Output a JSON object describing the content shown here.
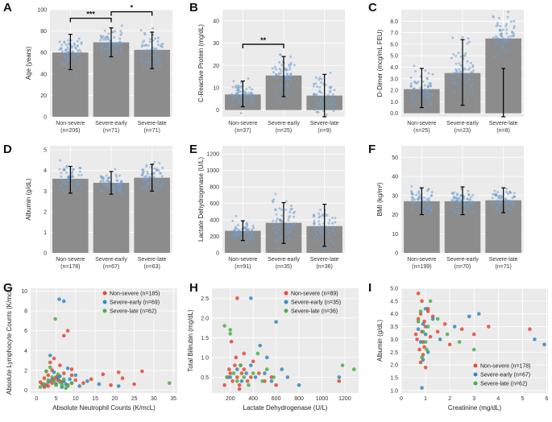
{
  "colors": {
    "bar": "#8c8c8c",
    "bar_dots": "#6f9fd0",
    "non_severe": "#e24a33",
    "severe_early": "#348abd",
    "severe_late": "#4daf4a"
  },
  "chart_data": [
    {
      "id": "A",
      "type": "bar",
      "panel_label": "A",
      "ylabel": "Age (years)",
      "ylim": [
        0,
        100
      ],
      "yticks": [
        0,
        20,
        40,
        60,
        80,
        100
      ],
      "categories": [
        "Non-severe",
        "Severe-early",
        "Severe-late"
      ],
      "ns": [
        "(n=206)",
        "(n=71)",
        "(n=71)"
      ],
      "values": [
        60,
        69.5,
        62.5
      ],
      "err_low": [
        44,
        56,
        45
      ],
      "err_high": [
        77,
        83,
        79
      ],
      "brackets": [
        {
          "from": 0,
          "to": 1,
          "level": 92,
          "label": "***"
        },
        {
          "from": 1,
          "to": 2,
          "level": 98,
          "label": "*"
        }
      ]
    },
    {
      "id": "B",
      "type": "bar",
      "panel_label": "B",
      "ylabel": "C-Reactive Protein (mg/dL)",
      "ylim": [
        -3,
        45
      ],
      "yticks": [
        0,
        10,
        20,
        30,
        40
      ],
      "categories": [
        "Non-severe",
        "Severe-early",
        "Severe-late"
      ],
      "ns": [
        "(n=37)",
        "(n=25)",
        "(n=9)"
      ],
      "values": [
        7,
        15.5,
        6.5
      ],
      "err_low": [
        1.5,
        6,
        -3
      ],
      "err_high": [
        13,
        24,
        16
      ],
      "brackets": [
        {
          "from": 0,
          "to": 1,
          "level": 29.5,
          "label": "**"
        }
      ]
    },
    {
      "id": "C",
      "type": "bar",
      "panel_label": "C",
      "ylabel": "D-Dimer (mcg/mL FEU)",
      "ylim": [
        -0.3,
        9
      ],
      "yticks": [
        0,
        1,
        2,
        3,
        4,
        5,
        6,
        7,
        8
      ],
      "tickDigits": 1,
      "categories": [
        "Non-severe",
        "Severe-early",
        "Severe-late"
      ],
      "ns": [
        "(n=25)",
        "(n=23)",
        "(n=8)"
      ],
      "values": [
        2.1,
        3.5,
        6.5
      ],
      "err_low": [
        0.5,
        0.7,
        -0.3
      ],
      "err_high": [
        3.9,
        6.4,
        3.9
      ],
      "brackets": []
    },
    {
      "id": "D",
      "type": "bar",
      "panel_label": "D",
      "ylabel": "Albumin (g/dL)",
      "ylim": [
        0,
        5.2
      ],
      "yticks": [
        0,
        1,
        2,
        3,
        4,
        5
      ],
      "categories": [
        "Non-severe",
        "Severe-early",
        "Severe-late"
      ],
      "ns": [
        "(n=178)",
        "(n=67)",
        "(n=63)"
      ],
      "values": [
        3.6,
        3.4,
        3.65
      ],
      "err_low": [
        2.9,
        2.85,
        3.0
      ],
      "err_high": [
        4.2,
        3.95,
        4.3
      ],
      "brackets": []
    },
    {
      "id": "E",
      "type": "bar",
      "panel_label": "E",
      "ylabel": "Lactate Dehydrogenase (U/L)",
      "ylim": [
        0,
        1300
      ],
      "yticks": [
        0,
        200,
        400,
        600,
        800,
        1000,
        1200
      ],
      "categories": [
        "Non-severe",
        "Severe-early",
        "Severe-late"
      ],
      "ns": [
        "(n=91)",
        "(n=35)",
        "(n=36)"
      ],
      "values": [
        268,
        365,
        325
      ],
      "err_low": [
        150,
        115,
        80
      ],
      "err_high": [
        390,
        610,
        590
      ],
      "brackets": []
    },
    {
      "id": "F",
      "type": "bar",
      "panel_label": "F",
      "ylabel": "BMI (kg/m²)",
      "ylim": [
        0,
        56
      ],
      "yticks": [
        0,
        10,
        20,
        30,
        40,
        50
      ],
      "categories": [
        "Non-severe",
        "Severe-early",
        "Severe-late"
      ],
      "ns": [
        "(n=199)",
        "(n=70)",
        "(n=71)"
      ],
      "values": [
        27,
        27,
        27.5
      ],
      "err_low": [
        20,
        20,
        21
      ],
      "err_high": [
        34,
        34.5,
        34
      ],
      "brackets": []
    },
    {
      "id": "G",
      "type": "scatter",
      "panel_label": "G",
      "xlabel": "Absolute Neutrophil Counts (K/mcL)",
      "ylabel": "Absolute Lymphocyte Counts (K/mcL)",
      "xlim": [
        -1.5,
        36
      ],
      "ylim": [
        -0.3,
        10.3
      ],
      "xticks": [
        0,
        5,
        10,
        15,
        20,
        25,
        30,
        35
      ],
      "yticks": [
        0,
        2,
        4,
        6,
        8,
        10
      ],
      "series": [
        {
          "name": "Non-severe (n=185)",
          "x": [
            1,
            2,
            2.5,
            3,
            3.5,
            4,
            4.5,
            5,
            5.5,
            6,
            7,
            8,
            9,
            10,
            12,
            14,
            17,
            19,
            21,
            22,
            25,
            27,
            2,
            3,
            4,
            5,
            6,
            7,
            8,
            9,
            3.5,
            4.5,
            5.5,
            6.5,
            1.5,
            2.5
          ],
          "y": [
            0.8,
            1.2,
            0.5,
            1.5,
            0.9,
            2,
            1.1,
            0.6,
            1.4,
            2.5,
            5.5,
            6,
            1.5,
            1,
            0.7,
            1.1,
            1.6,
            0.5,
            1.8,
            1.2,
            0.6,
            1.9,
            0.3,
            0.4,
            0.7,
            1.3,
            0.9,
            1.7,
            0.5,
            2.1,
            2.8,
            3.2,
            1,
            0.8,
            0.6,
            1.9
          ]
        },
        {
          "name": "Severe-early (n=69)",
          "x": [
            2,
            3,
            4,
            5,
            6,
            7,
            8,
            9,
            10,
            11,
            13,
            16,
            21,
            3.5,
            4.5,
            5.5,
            6.5,
            7.5,
            8.5,
            5.8,
            7
          ],
          "y": [
            0.5,
            0.8,
            1.1,
            0.6,
            1.4,
            0.9,
            2.2,
            0.7,
            1.5,
            0.4,
            0.9,
            0.6,
            0.4,
            3.5,
            1.8,
            1.2,
            0.3,
            0.6,
            1.1,
            9.2,
            9
          ]
        },
        {
          "name": "Severe-late (n=62)",
          "x": [
            1,
            2,
            3,
            4,
            5,
            6,
            7,
            8,
            9,
            34,
            2.5,
            3.5,
            4.5,
            5.5,
            6.5,
            7.5,
            4.8
          ],
          "y": [
            0.3,
            0.6,
            1,
            1.3,
            0.5,
            0.8,
            1.1,
            0.4,
            0.7,
            0.7,
            1.9,
            2.3,
            0.9,
            1.6,
            0.5,
            0.2,
            7.2
          ]
        }
      ]
    },
    {
      "id": "H",
      "type": "scatter",
      "panel_label": "H",
      "xlabel": "Lactate Dehydrogenase (U/L)",
      "ylabel": "Total Bilirubin (mg/dL)",
      "xlim": [
        40,
        1320
      ],
      "ylim": [
        0.1,
        2.75
      ],
      "xticks": [
        200,
        400,
        600,
        800,
        1000,
        1200
      ],
      "yticks": [
        0.5,
        1.0,
        1.5,
        2.0,
        2.5
      ],
      "tickDigits": 1,
      "series": [
        {
          "name": "Non-severe (n=89)",
          "x": [
            150,
            180,
            200,
            220,
            240,
            260,
            280,
            300,
            320,
            350,
            380,
            400,
            450,
            500,
            560,
            600,
            250,
            320,
            210,
            190,
            280,
            260,
            290,
            1150
          ],
          "y": [
            0.3,
            0.5,
            0.6,
            0.4,
            0.8,
            0.5,
            0.3,
            0.6,
            0.7,
            0.4,
            0.5,
            0.9,
            0.6,
            0.4,
            0.5,
            0.3,
            1.0,
            1.1,
            1.4,
            0.7,
            0.2,
            2.5,
            0.8,
            0.4
          ]
        },
        {
          "name": "Severe-early (n=35)",
          "x": [
            200,
            260,
            300,
            340,
            380,
            420,
            460,
            500,
            560,
            600,
            650,
            700,
            800,
            1150,
            380,
            520
          ],
          "y": [
            0.5,
            0.7,
            0.4,
            0.6,
            0.8,
            0.5,
            1.3,
            0.6,
            0.4,
            1.9,
            0.7,
            0.5,
            0.3,
            0.5,
            2.5,
            1.0
          ]
        },
        {
          "name": "Severe-late (n=36)",
          "x": [
            150,
            170,
            200,
            230,
            260,
            290,
            320,
            360,
            400,
            440,
            480,
            520,
            580,
            1180,
            1280,
            200
          ],
          "y": [
            1.8,
            0.5,
            1.7,
            0.6,
            0.4,
            0.8,
            0.5,
            0.3,
            0.6,
            1.1,
            0.4,
            0.7,
            0.5,
            0.8,
            0.7,
            1.6
          ]
        }
      ]
    },
    {
      "id": "I",
      "type": "scatter",
      "panel_label": "I",
      "xlabel": "Creatinine (mg/dL)",
      "ylabel": "Albumin (g/dL)",
      "xlim": [
        0,
        6.05
      ],
      "ylim": [
        0.9,
        5.0
      ],
      "xticks": [
        0,
        1,
        2,
        3,
        4,
        5,
        6
      ],
      "yticks": [
        1.0,
        1.5,
        2.0,
        2.5,
        3.0,
        3.5,
        4.0,
        4.5,
        5.0
      ],
      "tickDigits": 1,
      "series": [
        {
          "name": "Non-severe (n=178)",
          "x": [
            0.6,
            0.7,
            0.8,
            0.9,
            1.0,
            1.1,
            1.2,
            0.75,
            0.85,
            0.95,
            1.3,
            1.5,
            1.8,
            2.0,
            2.5,
            3.0,
            3.6,
            5.3,
            0.8,
            0.9,
            1.0,
            0.7,
            0.65,
            1.1,
            0.85,
            0.95
          ],
          "y": [
            3.2,
            3.8,
            4.0,
            2.9,
            3.5,
            4.2,
            3.1,
            2.6,
            4.5,
            3.7,
            3.9,
            3.3,
            3.6,
            2.8,
            3.4,
            3.2,
            3.5,
            3.4,
            2.1,
            2.4,
            1.9,
            4.8,
            3.0,
            4.1,
            3.3,
            2.7
          ]
        },
        {
          "name": "Severe-early (n=67)",
          "x": [
            0.7,
            0.8,
            0.9,
            1.0,
            1.1,
            1.3,
            1.6,
            2.2,
            2.8,
            3.2,
            0.85,
            0.9,
            5.5,
            5.9,
            1.0
          ],
          "y": [
            3.4,
            2.9,
            3.6,
            3.2,
            2.5,
            3.8,
            3.0,
            3.5,
            3.9,
            4.0,
            1.1,
            2.2,
            3.0,
            2.8,
            4.2
          ]
        },
        {
          "name": "Severe-late (n=62)",
          "x": [
            0.7,
            0.8,
            0.9,
            1.0,
            1.1,
            1.2,
            1.5,
            1.9,
            2.4,
            3.0,
            0.85,
            1.05
          ],
          "y": [
            3.7,
            4.1,
            3.3,
            2.9,
            3.5,
            4.5,
            3.8,
            3.2,
            2.9,
            2.6,
            2.3,
            2.6
          ]
        }
      ]
    }
  ]
}
